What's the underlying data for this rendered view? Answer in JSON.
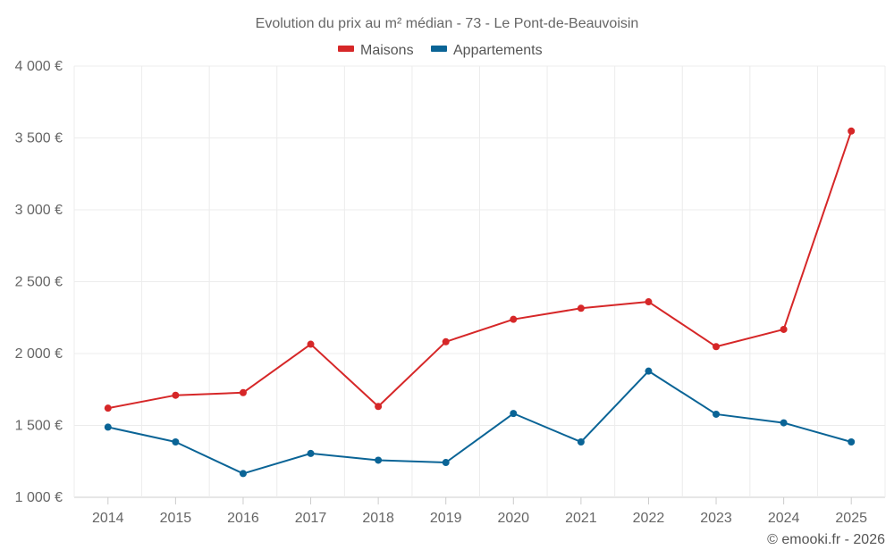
{
  "chart_data": {
    "type": "line",
    "title": "Evolution du prix au m² médian - 73 - Le Pont-de-Beauvoisin",
    "categories": [
      "2014",
      "2015",
      "2016",
      "2017",
      "2018",
      "2019",
      "2020",
      "2021",
      "2022",
      "2023",
      "2024",
      "2025"
    ],
    "series": [
      {
        "name": "Maisons",
        "color": "#d62728",
        "values": [
          1620,
          1710,
          1728,
          2065,
          1632,
          2082,
          2238,
          2315,
          2360,
          2048,
          2168,
          3548
        ]
      },
      {
        "name": "Appartements",
        "color": "#0a6496",
        "values": [
          1488,
          1385,
          1165,
          1305,
          1258,
          1242,
          1583,
          1385,
          1878,
          1578,
          1518,
          1385
        ]
      }
    ],
    "yticks": [
      "1 000 €",
      "1 500 €",
      "2 000 €",
      "2 500 €",
      "3 000 €",
      "3 500 €",
      "4 000 €"
    ],
    "ytick_values": [
      1000,
      1500,
      2000,
      2500,
      3000,
      3500,
      4000
    ],
    "ylim": [
      1000,
      4000
    ],
    "xlabel": "",
    "ylabel": "",
    "grid": true,
    "legend_position": "top-center"
  },
  "credit": "© emooki.fr - 2026"
}
